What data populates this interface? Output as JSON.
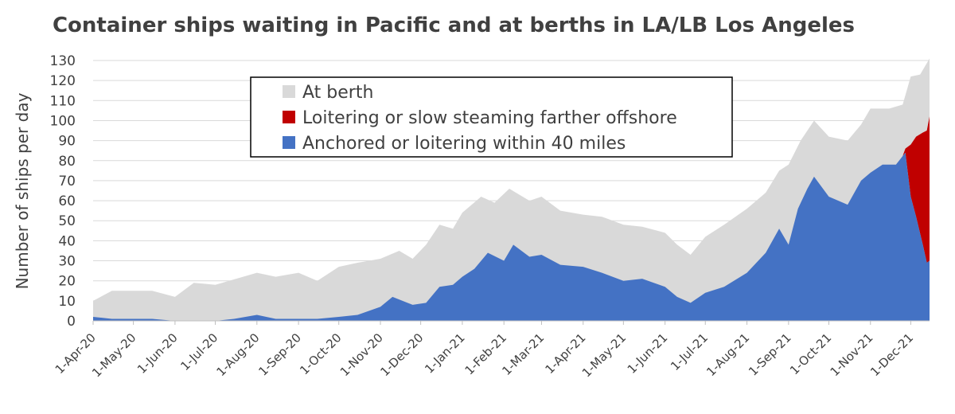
{
  "chart_data": {
    "type": "area",
    "title": "Container ships waiting in Pacific and at berths in LA/LB Los Angeles",
    "xlabel": "",
    "ylabel": "Number of ships per day",
    "ylim": [
      0,
      130
    ],
    "y_ticks": [
      0,
      10,
      20,
      30,
      40,
      50,
      60,
      70,
      80,
      90,
      100,
      110,
      120,
      130
    ],
    "x_ticks": [
      "1-Apr-20",
      "1-May-20",
      "1-Jun-20",
      "1-Jul-20",
      "1-Aug-20",
      "1-Sep-20",
      "1-Oct-20",
      "1-Nov-20",
      "1-Dec-20",
      "1-Jan-21",
      "1-Feb-21",
      "1-Mar-21",
      "1-Apr-21",
      "1-May-21",
      "1-Jun-21",
      "1-Jul-21",
      "1-Aug-21",
      "1-Sep-21",
      "1-Oct-21",
      "1-Nov-21",
      "1-Dec-21"
    ],
    "x_range": [
      "2020-04-01",
      "2021-12-15"
    ],
    "stacked": true,
    "grid": "horizontal",
    "legend_position": "top-center",
    "series": [
      {
        "name": "Anchored or loitering within 40 miles",
        "color": "#4472c4",
        "points": [
          [
            "2020-04-01",
            2
          ],
          [
            "2020-04-15",
            1
          ],
          [
            "2020-05-15",
            1
          ],
          [
            "2020-06-01",
            0
          ],
          [
            "2020-07-01",
            0
          ],
          [
            "2020-07-15",
            1
          ],
          [
            "2020-08-01",
            3
          ],
          [
            "2020-08-15",
            1
          ],
          [
            "2020-09-15",
            1
          ],
          [
            "2020-10-01",
            2
          ],
          [
            "2020-10-15",
            3
          ],
          [
            "2020-11-01",
            7
          ],
          [
            "2020-11-10",
            12
          ],
          [
            "2020-11-25",
            8
          ],
          [
            "2020-12-05",
            9
          ],
          [
            "2020-12-15",
            17
          ],
          [
            "2020-12-25",
            18
          ],
          [
            "2021-01-01",
            22
          ],
          [
            "2021-01-10",
            26
          ],
          [
            "2021-01-20",
            34
          ],
          [
            "2021-02-01",
            30
          ],
          [
            "2021-02-08",
            38
          ],
          [
            "2021-02-20",
            32
          ],
          [
            "2021-03-01",
            33
          ],
          [
            "2021-03-15",
            28
          ],
          [
            "2021-04-01",
            27
          ],
          [
            "2021-04-15",
            24
          ],
          [
            "2021-05-01",
            20
          ],
          [
            "2021-05-15",
            21
          ],
          [
            "2021-06-01",
            17
          ],
          [
            "2021-06-10",
            12
          ],
          [
            "2021-06-20",
            9
          ],
          [
            "2021-07-01",
            14
          ],
          [
            "2021-07-15",
            17
          ],
          [
            "2021-08-01",
            24
          ],
          [
            "2021-08-15",
            34
          ],
          [
            "2021-08-25",
            46
          ],
          [
            "2021-09-01",
            38
          ],
          [
            "2021-09-08",
            56
          ],
          [
            "2021-09-15",
            66
          ],
          [
            "2021-09-20",
            72
          ],
          [
            "2021-10-01",
            62
          ],
          [
            "2021-10-15",
            58
          ],
          [
            "2021-10-25",
            70
          ],
          [
            "2021-11-01",
            74
          ],
          [
            "2021-11-10",
            78
          ],
          [
            "2021-11-20",
            78
          ],
          [
            "2021-11-27",
            84
          ],
          [
            "2021-12-01",
            62
          ],
          [
            "2021-12-05",
            52
          ],
          [
            "2021-12-10",
            38
          ],
          [
            "2021-12-13",
            29
          ],
          [
            "2021-12-15",
            30
          ]
        ]
      },
      {
        "name": "Loitering or slow steaming farther offshore",
        "color": "#c00000",
        "points": [
          [
            "2021-11-25",
            0
          ],
          [
            "2021-11-27",
            2
          ],
          [
            "2021-12-01",
            26
          ],
          [
            "2021-12-05",
            40
          ],
          [
            "2021-12-10",
            56
          ],
          [
            "2021-12-13",
            66
          ],
          [
            "2021-12-15",
            72
          ]
        ]
      },
      {
        "name": "At berth",
        "color": "#d9d9d9",
        "total_points": [
          [
            "2020-04-01",
            10
          ],
          [
            "2020-04-15",
            15
          ],
          [
            "2020-05-15",
            15
          ],
          [
            "2020-06-01",
            12
          ],
          [
            "2020-06-15",
            19
          ],
          [
            "2020-07-01",
            18
          ],
          [
            "2020-08-01",
            24
          ],
          [
            "2020-08-15",
            22
          ],
          [
            "2020-09-01",
            24
          ],
          [
            "2020-09-15",
            20
          ],
          [
            "2020-10-01",
            27
          ],
          [
            "2020-10-15",
            29
          ],
          [
            "2020-11-01",
            31
          ],
          [
            "2020-11-15",
            35
          ],
          [
            "2020-11-25",
            31
          ],
          [
            "2020-12-05",
            38
          ],
          [
            "2020-12-15",
            48
          ],
          [
            "2020-12-25",
            46
          ],
          [
            "2021-01-01",
            54
          ],
          [
            "2021-01-15",
            62
          ],
          [
            "2021-01-25",
            59
          ],
          [
            "2021-02-05",
            66
          ],
          [
            "2021-02-20",
            60
          ],
          [
            "2021-03-01",
            62
          ],
          [
            "2021-03-15",
            55
          ],
          [
            "2021-04-01",
            53
          ],
          [
            "2021-04-15",
            52
          ],
          [
            "2021-05-01",
            48
          ],
          [
            "2021-05-15",
            47
          ],
          [
            "2021-06-01",
            44
          ],
          [
            "2021-06-10",
            38
          ],
          [
            "2021-06-20",
            33
          ],
          [
            "2021-07-01",
            42
          ],
          [
            "2021-07-15",
            48
          ],
          [
            "2021-08-01",
            56
          ],
          [
            "2021-08-15",
            64
          ],
          [
            "2021-08-25",
            75
          ],
          [
            "2021-09-01",
            78
          ],
          [
            "2021-09-10",
            90
          ],
          [
            "2021-09-20",
            100
          ],
          [
            "2021-10-01",
            92
          ],
          [
            "2021-10-15",
            90
          ],
          [
            "2021-10-25",
            98
          ],
          [
            "2021-11-01",
            106
          ],
          [
            "2021-11-15",
            106
          ],
          [
            "2021-11-25",
            108
          ],
          [
            "2021-12-01",
            122
          ],
          [
            "2021-12-08",
            123
          ],
          [
            "2021-12-15",
            131
          ]
        ]
      }
    ]
  }
}
